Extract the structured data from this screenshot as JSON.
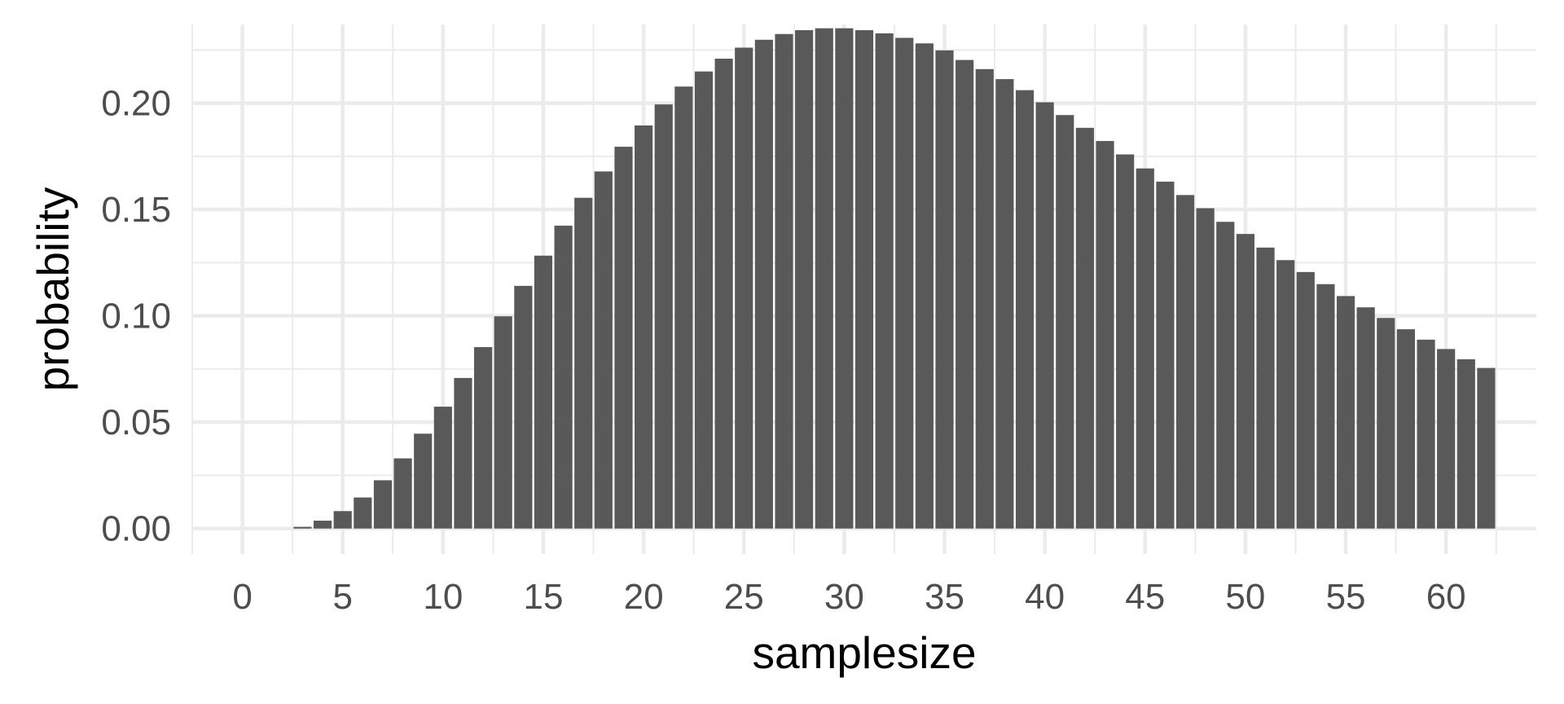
{
  "chart_data": {
    "type": "bar",
    "xlabel": "samplesize",
    "ylabel": "probability",
    "xlim": [
      -2.5,
      64.5
    ],
    "ylim": [
      -0.012,
      0.237
    ],
    "x_ticks": [
      0,
      5,
      10,
      15,
      20,
      25,
      30,
      35,
      40,
      45,
      50,
      55,
      60
    ],
    "x_tick_labels": [
      "0",
      "5",
      "10",
      "15",
      "20",
      "25",
      "30",
      "35",
      "40",
      "45",
      "50",
      "55",
      "60"
    ],
    "y_ticks": [
      0,
      0.05,
      0.1,
      0.15,
      0.2
    ],
    "y_tick_labels": [
      "0.00",
      "0.05",
      "0.10",
      "0.15",
      "0.20"
    ],
    "grid": true,
    "legend": "none",
    "bar_color": "#595959",
    "x": [
      0,
      1,
      2,
      3,
      4,
      5,
      6,
      7,
      8,
      9,
      10,
      11,
      12,
      13,
      14,
      15,
      16,
      17,
      18,
      19,
      20,
      21,
      22,
      23,
      24,
      25,
      26,
      27,
      28,
      29,
      30,
      31,
      32,
      33,
      34,
      35,
      36,
      37,
      38,
      39,
      40,
      41,
      42,
      43,
      44,
      45,
      46,
      47,
      48,
      49,
      50,
      51,
      52,
      53,
      54,
      55,
      56,
      57,
      58,
      59,
      60,
      61,
      62
    ],
    "values": [
      0,
      0,
      0,
      0.0008,
      0.0037,
      0.0082,
      0.0146,
      0.0227,
      0.033,
      0.0446,
      0.0573,
      0.0708,
      0.0853,
      0.0998,
      0.1141,
      0.1283,
      0.1424,
      0.1555,
      0.1679,
      0.1795,
      0.1895,
      0.1994,
      0.2078,
      0.2149,
      0.2209,
      0.2261,
      0.2298,
      0.2325,
      0.2343,
      0.2352,
      0.2352,
      0.2343,
      0.2328,
      0.2307,
      0.2281,
      0.2248,
      0.2203,
      0.216,
      0.2113,
      0.2061,
      0.2004,
      0.1944,
      0.1884,
      0.1822,
      0.1759,
      0.1693,
      0.1631,
      0.1568,
      0.1506,
      0.1442,
      0.1385,
      0.1321,
      0.1262,
      0.1206,
      0.1149,
      0.1093,
      0.104,
      0.099,
      0.0937,
      0.0888,
      0.0844,
      0.0796,
      0.0755
    ]
  }
}
